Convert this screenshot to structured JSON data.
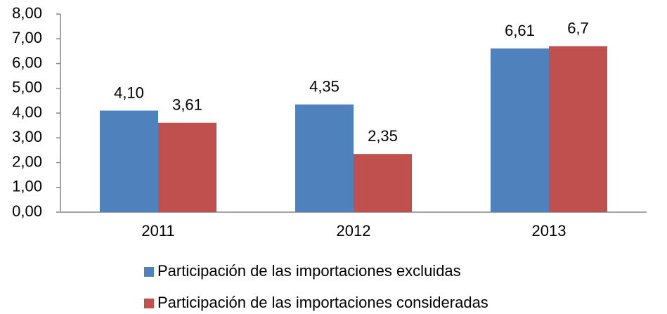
{
  "chart_data": {
    "type": "bar",
    "categories": [
      "2011",
      "2012",
      "2013"
    ],
    "series": [
      {
        "name": "Participación de las importaciones excluidas",
        "color": "#4f81bd",
        "values": [
          4.1,
          4.35,
          6.61
        ],
        "value_labels": [
          "4,10",
          "4,35",
          "6,61"
        ]
      },
      {
        "name": "Participación de las importaciones consideradas",
        "color": "#c0504d",
        "values": [
          3.61,
          2.35,
          6.7
        ],
        "value_labels": [
          "3,61",
          "2,35",
          "6,7"
        ]
      }
    ],
    "ylim": [
      0,
      8
    ],
    "yticks": [
      {
        "value": 0,
        "label": "0,00"
      },
      {
        "value": 1,
        "label": "1,00"
      },
      {
        "value": 2,
        "label": "2,00"
      },
      {
        "value": 3,
        "label": "3,00"
      },
      {
        "value": 4,
        "label": "4,00"
      },
      {
        "value": 5,
        "label": "5,00"
      },
      {
        "value": 6,
        "label": "6,00"
      },
      {
        "value": 7,
        "label": "7,00"
      },
      {
        "value": 8,
        "label": "8,00"
      }
    ],
    "grid": false,
    "legend": "bottom"
  }
}
